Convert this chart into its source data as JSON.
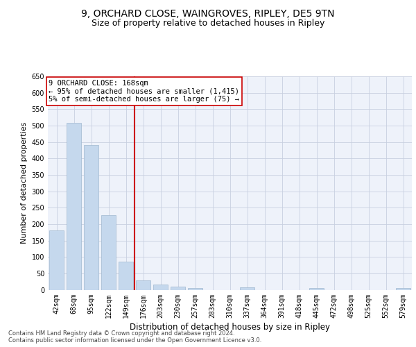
{
  "title_line1": "9, ORCHARD CLOSE, WAINGROVES, RIPLEY, DE5 9TN",
  "title_line2": "Size of property relative to detached houses in Ripley",
  "xlabel": "Distribution of detached houses by size in Ripley",
  "ylabel": "Number of detached properties",
  "bar_color": "#c5d8ed",
  "bar_edgecolor": "#a0b8d0",
  "grid_color": "#c8d0e0",
  "background_color": "#eef2fa",
  "vline_color": "#cc0000",
  "vline_bar_index": 5,
  "annotation_text": "9 ORCHARD CLOSE: 168sqm\n← 95% of detached houses are smaller (1,415)\n5% of semi-detached houses are larger (75) →",
  "annotation_box_color": "#ffffff",
  "annotation_border_color": "#cc0000",
  "categories": [
    "42sqm",
    "68sqm",
    "95sqm",
    "122sqm",
    "149sqm",
    "176sqm",
    "203sqm",
    "230sqm",
    "257sqm",
    "283sqm",
    "310sqm",
    "337sqm",
    "364sqm",
    "391sqm",
    "418sqm",
    "445sqm",
    "472sqm",
    "498sqm",
    "525sqm",
    "552sqm",
    "579sqm"
  ],
  "values": [
    181,
    509,
    441,
    227,
    85,
    28,
    15,
    10,
    6,
    0,
    0,
    8,
    0,
    0,
    0,
    5,
    0,
    0,
    0,
    0,
    6
  ],
  "ylim": [
    0,
    650
  ],
  "yticks": [
    0,
    50,
    100,
    150,
    200,
    250,
    300,
    350,
    400,
    450,
    500,
    550,
    600,
    650
  ],
  "footer_text": "Contains HM Land Registry data © Crown copyright and database right 2024.\nContains public sector information licensed under the Open Government Licence v3.0.",
  "title_fontsize": 10,
  "subtitle_fontsize": 9,
  "tick_fontsize": 7,
  "ylabel_fontsize": 8,
  "xlabel_fontsize": 8.5,
  "footer_fontsize": 6,
  "annotation_fontsize": 7.5
}
